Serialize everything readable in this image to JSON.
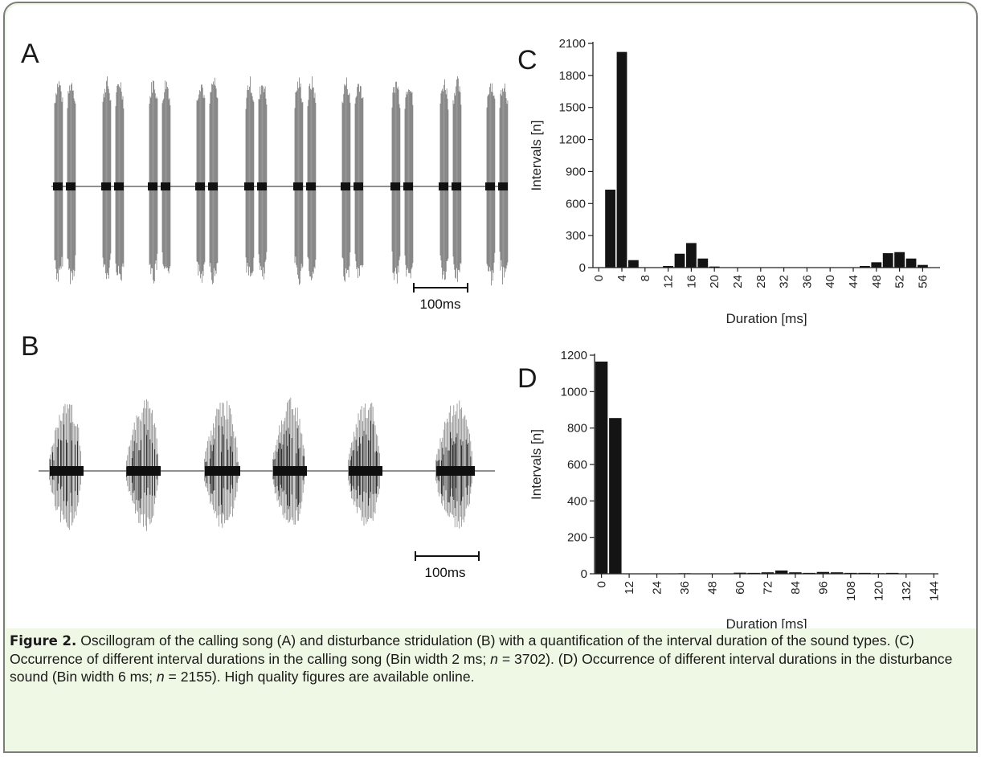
{
  "figure": {
    "panels": {
      "a": "A",
      "b": "B",
      "c": "C",
      "d": "D"
    },
    "scale_bar_a": "100ms",
    "scale_bar_b": "100ms"
  },
  "oscillograms": {
    "A": {
      "chirp_count": 10,
      "pulses_per_chirp": 2
    },
    "B": {
      "chirp_count": 6
    }
  },
  "chart_data": [
    {
      "panel": "C",
      "type": "bar",
      "title": "",
      "xlabel": "Duration [ms]",
      "ylabel": "Intervals [n]",
      "xlim": [
        -1,
        59
      ],
      "ylim": [
        0,
        2100
      ],
      "yticks": [
        0,
        300,
        600,
        900,
        1200,
        1500,
        1800,
        2100
      ],
      "xticks": [
        0,
        4,
        8,
        12,
        16,
        20,
        24,
        28,
        32,
        36,
        40,
        44,
        48,
        52,
        56
      ],
      "bin_width": 2,
      "x": [
        2,
        4,
        6,
        12,
        14,
        16,
        18,
        20,
        46,
        48,
        50,
        52,
        54,
        56
      ],
      "values": [
        730,
        2020,
        70,
        15,
        130,
        230,
        85,
        10,
        15,
        50,
        135,
        145,
        85,
        25
      ],
      "grid": false
    },
    {
      "panel": "D",
      "type": "bar",
      "title": "",
      "xlabel": "Duration [ms]",
      "ylabel": "Intervals [n]",
      "xlim": [
        -3,
        146
      ],
      "ylim": [
        0,
        1200
      ],
      "yticks": [
        0,
        200,
        400,
        600,
        800,
        1000,
        1200
      ],
      "xticks": [
        0,
        12,
        24,
        36,
        48,
        60,
        72,
        84,
        96,
        108,
        120,
        132,
        144
      ],
      "bin_width": 6,
      "x": [
        0,
        6,
        12,
        18,
        24,
        30,
        36,
        42,
        48,
        54,
        60,
        66,
        72,
        78,
        84,
        90,
        96,
        102,
        108,
        114,
        120,
        126
      ],
      "values": [
        1165,
        855,
        2,
        2,
        2,
        2,
        3,
        2,
        2,
        2,
        6,
        5,
        8,
        18,
        8,
        5,
        10,
        8,
        5,
        5,
        3,
        5
      ],
      "grid": false
    }
  ],
  "caption": {
    "label": "Figure 2.",
    "line1": " Oscillogram of the calling song (A) and disturbance stridulation (B) with a quantification of the interval duration of the sound types. (C) Occurrence of different interval durations in the calling song (Bin width 2 ms; ",
    "n_symbol_1": "n",
    "n1_value": " = 3702). (D) Occurrence of different interval durations in the disturbance sound (Bin width 6 ms; ",
    "n_symbol_2": "n",
    "n2_value": " = 2155). High quality figures are available online."
  }
}
